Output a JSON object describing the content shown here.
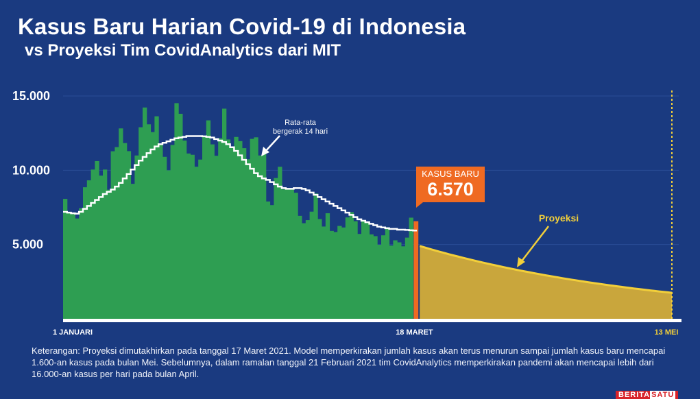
{
  "header": {
    "title": "Kasus Baru Harian Covid-19 di Indonesia",
    "subtitle": "vs Proyeksi Tim CovidAnalytics dari MIT"
  },
  "colors": {
    "background": "#1a3a80",
    "bars": "#2e9e52",
    "area": "#2e9e52",
    "highlight": "#ef6a22",
    "projection": "#c9a63c",
    "projection_line": "#f2cf3a",
    "moving_average": "#ffffff",
    "gridline": "#2b4c96",
    "may_marker": "#f2cf3a"
  },
  "chart_data": {
    "type": "bar",
    "x_start_label": "1 JANUARI",
    "x_highlight_label": "18 MARET",
    "x_end_label": "13 MEI",
    "y_ticks": [
      "15.000",
      "10.000",
      "5.000"
    ],
    "y_tick_values": [
      15000,
      10000,
      5000
    ],
    "ylim": [
      0,
      15000
    ],
    "daily_cases": [
      8072,
      7203,
      7047,
      6753,
      7445,
      8854,
      9321,
      10046,
      10617,
      9640,
      10047,
      8692,
      11278,
      11557,
      12818,
      11830,
      11287,
      9086,
      10994,
      12895,
      14224,
      13094,
      12568,
      13632,
      11788,
      10904,
      9994,
      11703,
      14518,
      13802,
      12001,
      11128,
      11043,
      10237,
      10720,
      12300,
      13360,
      11742,
      10973,
      12157,
      14146,
      12073,
      11519,
      12242,
      11962,
      11488,
      10737,
      12113,
      12217,
      10994,
      11123,
      7897,
      7653,
      9477,
      10233,
      8715,
      8779,
      8705,
      8487,
      6930,
      6435,
      6643,
      7214,
      8435,
      6714,
      6211,
      7105,
      5916,
      5842,
      6251,
      6148,
      6825,
      7179,
      6569,
      5713,
      6614,
      6460,
      5682,
      5563,
      4987,
      5620,
      6163,
      4930,
      5283,
      5146,
      4878,
      5465,
      6808,
      6570
    ],
    "moving_average_label": "Rata-rata bergerak 14 hari",
    "moving_average": [
      7200,
      7150,
      7100,
      7080,
      7200,
      7400,
      7600,
      7800,
      8000,
      8200,
      8400,
      8550,
      8700,
      8900,
      9150,
      9450,
      9750,
      10050,
      10350,
      10650,
      10900,
      11150,
      11400,
      11600,
      11750,
      11850,
      11950,
      12050,
      12150,
      12200,
      12250,
      12300,
      12300,
      12300,
      12300,
      12280,
      12250,
      12200,
      12100,
      12000,
      11900,
      11750,
      11550,
      11300,
      11000,
      10700,
      10400,
      10100,
      9800,
      9600,
      9450,
      9350,
      9200,
      9050,
      8900,
      8800,
      8750,
      8750,
      8800,
      8800,
      8750,
      8650,
      8500,
      8350,
      8200,
      8050,
      7900,
      7750,
      7600,
      7450,
      7300,
      7150,
      7000,
      6850,
      6700,
      6600,
      6500,
      6400,
      6300,
      6200,
      6150,
      6100,
      6050,
      6050,
      6000,
      6000,
      5980,
      5960,
      5940
    ],
    "highlight": {
      "label": "KASUS BARU",
      "value_text": "6.570",
      "value": 6570
    },
    "projection": {
      "label": "Proyeksi",
      "start_value": 4900,
      "end_value": 1750,
      "days": 56
    }
  },
  "note": {
    "label": "Keterangan:",
    "text": "Proyeksi dimutakhirkan pada tanggal 17 Maret 2021. Model memperkirakan jumlah kasus akan terus menurun sampai jumlah kasus baru mencapai 1.600-an kasus pada bulan Mei. Sebelumnya, dalam ramalan tanggal 21 Februari 2021 tim CovidAnalytics memperkirakan pandemi akan mencapai lebih dari 16.000-an kasus per hari pada bulan April."
  },
  "logo": {
    "part1": "BERITA",
    "part2": "SATU"
  }
}
